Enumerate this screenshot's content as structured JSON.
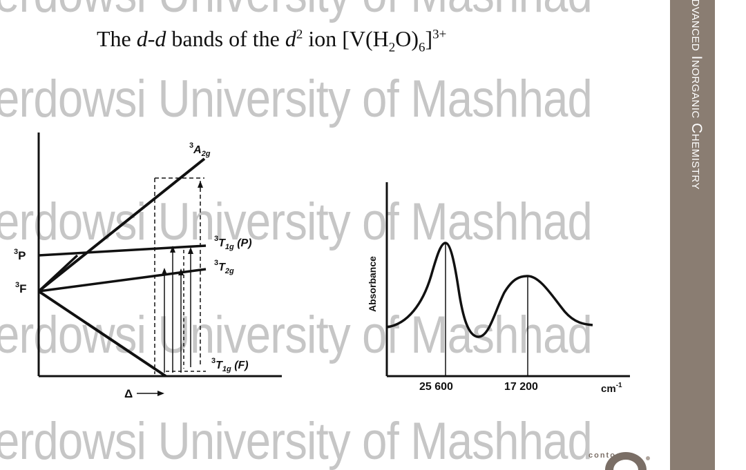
{
  "watermark": "erdowsi University of Mashhad",
  "title": {
    "prefix": "The ",
    "d1": "d",
    "dash": "-",
    "d2": "d",
    "mid": " bands of the ",
    "d3": "d",
    "d3_sup": "2",
    "ion_word": " ion  [V(H",
    "h2_sub": "2",
    "o_part": "O)",
    "six_sub": "6",
    "bracket": "]",
    "charge_sup": "3+"
  },
  "side_banner": "Advanced Inorganic Chemistry",
  "logo_text": "contoso",
  "diagram": {
    "a2g_label": "A",
    "a2g_sub": "2g",
    "a2g_sup": "3",
    "t1gp_label": "T",
    "t1gp_sub": "1g",
    "t1gp_paren": " (P)",
    "t1gp_sup": "3",
    "t2g_label": "T",
    "t2g_sub": "2g",
    "t2g_sup": "3",
    "t1gf_label": "T",
    "t1gf_sub": "1g",
    "t1gf_paren": " (F)",
    "t1gf_sup": "3",
    "p_label": "P",
    "p_sup": "3",
    "f_label": "F",
    "f_sup": "3",
    "delta_label": "Δ"
  },
  "spectrum": {
    "ylabel": "Absorbance",
    "peak1_label": "25 600",
    "peak2_label": "17 200",
    "unit_base": "cm",
    "unit_sup": "-1"
  }
}
